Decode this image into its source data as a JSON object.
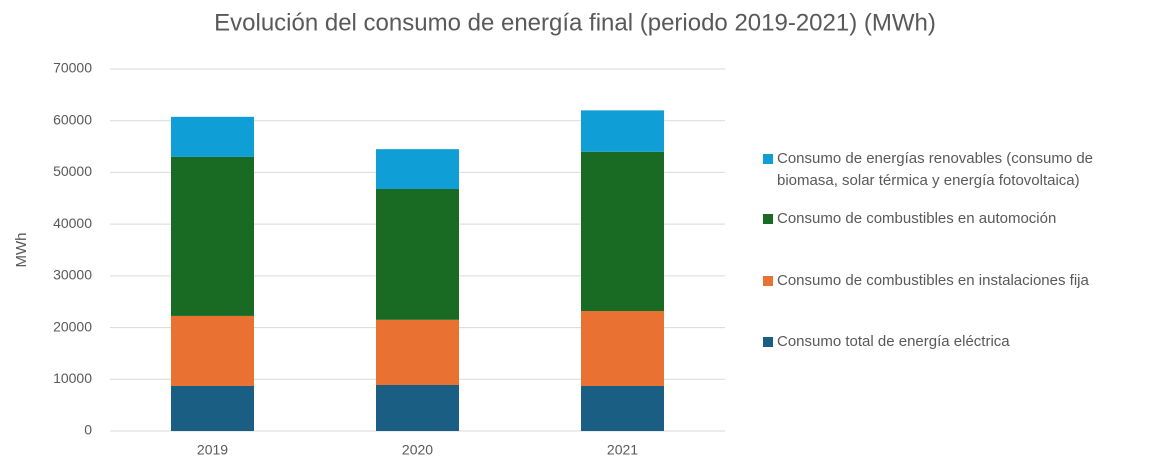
{
  "chart_data": {
    "type": "stacked_bar",
    "title": "Evolución del consumo de energía final (periodo 2019-2021) (MWh)",
    "y_label": "MWh",
    "categories": [
      "2019",
      "2020",
      "2021"
    ],
    "series": [
      {
        "name": "Consumo total de energía eléctrica",
        "color": "#1a5e84",
        "values": [
          8700,
          8900,
          8700
        ]
      },
      {
        "name": "Consumo de combustibles en instalaciones fija",
        "color": "#e97132",
        "values": [
          13550,
          12600,
          14500
        ]
      },
      {
        "name": "Consumo de combustibles en automoción",
        "color": "#196b24",
        "values": [
          30750,
          25300,
          30800
        ]
      },
      {
        "name": "Consumo de energías renovables (consumo de biomasa, solar térmica y energía fotovoltaica)",
        "color": "#0f9ed5",
        "values": [
          7750,
          7700,
          8000
        ]
      }
    ],
    "ylim": [
      0,
      70000
    ],
    "yticks": [
      0,
      10000,
      20000,
      30000,
      40000,
      50000,
      60000,
      70000
    ],
    "grid": true,
    "legend": "right"
  }
}
